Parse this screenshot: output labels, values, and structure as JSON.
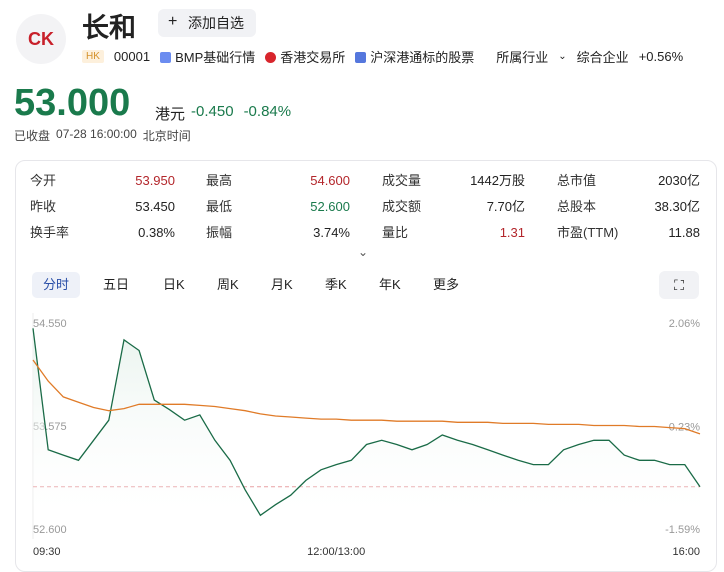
{
  "header": {
    "logo": "CK",
    "name": "长和",
    "watch_button": "添加自选",
    "market": "HK",
    "code": "00001",
    "tags": [
      "BMP基础行情",
      "香港交易所",
      "沪深港通标的股票"
    ],
    "industry_label": "所属行业",
    "industry": "综合企业",
    "industry_change": "+0.56%"
  },
  "quote": {
    "price": "53.000",
    "currency": "港元",
    "change": "-0.450",
    "change_pct": "-0.84%",
    "status": "已收盘",
    "time": "07-28 16:00:00",
    "timezone": "北京时间"
  },
  "stats": [
    [
      {
        "label": "今开",
        "value": "53.950",
        "color": "#b3262b"
      },
      {
        "label": "最高",
        "value": "54.600",
        "color": "#b3262b"
      },
      {
        "label": "成交量",
        "value": "1442万股",
        "color": "#222222"
      },
      {
        "label": "总市值",
        "value": "2030亿",
        "color": "#222222"
      }
    ],
    [
      {
        "label": "昨收",
        "value": "53.450",
        "color": "#222222"
      },
      {
        "label": "最低",
        "value": "52.600",
        "color": "#1a7a4c"
      },
      {
        "label": "成交额",
        "value": "7.70亿",
        "color": "#222222"
      },
      {
        "label": "总股本",
        "value": "38.30亿",
        "color": "#222222"
      }
    ],
    [
      {
        "label": "换手率",
        "value": "0.38%",
        "color": "#222222"
      },
      {
        "label": "振幅",
        "value": "3.74%",
        "color": "#222222"
      },
      {
        "label": "量比",
        "value": "1.31",
        "color": "#b3262b"
      },
      {
        "label": "市盈(TTM)",
        "value": "11.88",
        "color": "#222222"
      }
    ]
  ],
  "tabs": [
    "分时",
    "五日",
    "日K",
    "周K",
    "月K",
    "季K",
    "年K",
    "更多"
  ],
  "chart_data": {
    "type": "line",
    "categories": [
      "09:30",
      null,
      null,
      null,
      null,
      null,
      null,
      null,
      null,
      null,
      null,
      null,
      null,
      null,
      null,
      null,
      null,
      null,
      null,
      null,
      "12:00/13:00",
      null,
      null,
      null,
      null,
      null,
      null,
      null,
      null,
      null,
      null,
      null,
      null,
      null,
      null,
      null,
      null,
      null,
      null,
      null,
      null,
      null,
      null,
      null,
      "16:00"
    ],
    "series": [
      {
        "name": "price",
        "color": "#1a6b47",
        "values": [
          54.5,
          53.35,
          53.3,
          53.25,
          53.44,
          53.63,
          54.39,
          54.29,
          53.82,
          53.73,
          53.63,
          53.68,
          53.44,
          53.25,
          52.97,
          52.73,
          52.83,
          52.92,
          53.06,
          53.16,
          53.21,
          53.25,
          53.4,
          53.44,
          53.4,
          53.35,
          53.4,
          53.49,
          53.44,
          53.4,
          53.35,
          53.3,
          53.25,
          53.21,
          53.21,
          53.35,
          53.4,
          53.44,
          53.44,
          53.3,
          53.25,
          53.25,
          53.21,
          53.21,
          53.0
        ]
      },
      {
        "name": "average",
        "color": "#e07b28",
        "values": [
          54.2,
          54.0,
          53.85,
          53.8,
          53.75,
          53.72,
          53.74,
          53.78,
          53.78,
          53.78,
          53.78,
          53.77,
          53.76,
          53.74,
          53.72,
          53.69,
          53.67,
          53.66,
          53.65,
          53.64,
          53.64,
          53.63,
          53.63,
          53.63,
          53.62,
          53.62,
          53.62,
          53.62,
          53.61,
          53.61,
          53.61,
          53.6,
          53.6,
          53.6,
          53.59,
          53.59,
          53.59,
          53.58,
          53.58,
          53.58,
          53.57,
          53.57,
          53.56,
          53.55,
          53.5
        ]
      }
    ],
    "reference_line": 53.0,
    "ylim": [
      52.6,
      54.55
    ],
    "yticks": [
      {
        "value": 52.6,
        "label": "52.600"
      },
      {
        "value": 53.575,
        "label": "53.575"
      },
      {
        "value": 54.55,
        "label": "54.550"
      }
    ],
    "y2lim": [
      -1.59,
      2.06
    ],
    "y2ticks": [
      {
        "value": -1.59,
        "label": "-1.59%"
      },
      {
        "value": 0.23,
        "label": "0.23%"
      },
      {
        "value": 2.06,
        "label": "2.06%"
      }
    ]
  }
}
